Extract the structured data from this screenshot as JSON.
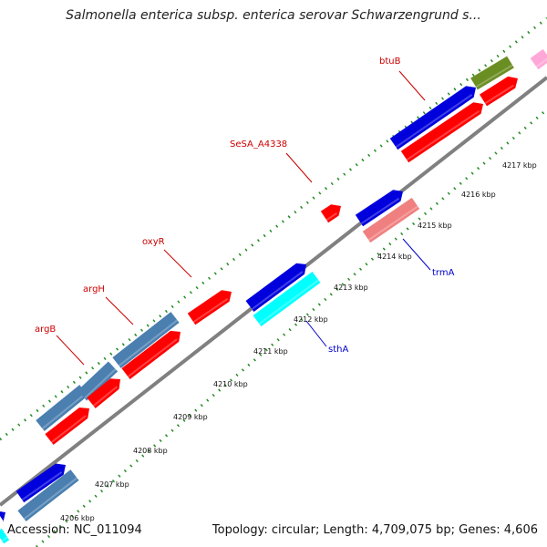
{
  "title": "Salmonella enterica subsp. enterica serovar Schwarzengrund s...",
  "footer": {
    "accession": "Accession: NC_011094",
    "info": "Topology: circular; Length: 4,709,075 bp; Genes: 4,606"
  },
  "ticks": [
    "4206 kbp",
    "4207 kbp",
    "4208 kbp",
    "4209 kbp",
    "4210 kbp",
    "4211 kbp",
    "4212 kbp",
    "4213 kbp",
    "4214 kbp",
    "4215 kbp",
    "4216 kbp",
    "4217 kbp"
  ],
  "labels": [
    {
      "text": "argB",
      "color": "#cc0000"
    },
    {
      "text": "argH",
      "color": "#cc0000"
    },
    {
      "text": "oxyR",
      "color": "#cc0000"
    },
    {
      "text": "SeSA_A4338",
      "color": "#cc0000"
    },
    {
      "text": "btuB",
      "color": "#cc0000"
    },
    {
      "text": "sthA",
      "color": "#0000cc"
    },
    {
      "text": "trmA",
      "color": "#0000cc"
    }
  ],
  "colors": {
    "red": "#ff0000",
    "blue": "#0000dd",
    "steel": "#4a7fb0",
    "cyan": "#00ffff",
    "salmon": "#f08080",
    "olive": "#6b8e23",
    "pink": "#ffa8d8",
    "backbone": "#808080",
    "gc": "#228b22"
  }
}
